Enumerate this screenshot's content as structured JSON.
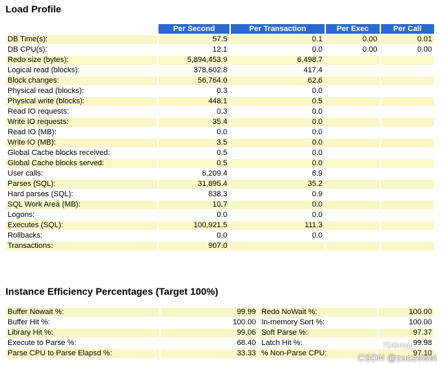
{
  "load_profile": {
    "title": "Load Profile",
    "headers": [
      "Per Second",
      "Per Transaction",
      "Per Exec",
      "Per Call"
    ],
    "rows": [
      {
        "label": "DB Time(s):",
        "ps": "57.5",
        "pt": "0.1",
        "pe": "0.00",
        "pc": "0.01"
      },
      {
        "label": "DB CPU(s):",
        "ps": "12.1",
        "pt": "0.0",
        "pe": "0.00",
        "pc": "0.00"
      },
      {
        "label": "Redo size (bytes):",
        "ps": "5,894,453.9",
        "pt": "6,498.7",
        "pe": "",
        "pc": ""
      },
      {
        "label": "Logical read (blocks):",
        "ps": "378,602.8",
        "pt": "417.4",
        "pe": "",
        "pc": ""
      },
      {
        "label": "Block changes:",
        "ps": "56,764.0",
        "pt": "62.6",
        "pe": "",
        "pc": ""
      },
      {
        "label": "Physical read (blocks):",
        "ps": "0.3",
        "pt": "0.0",
        "pe": "",
        "pc": ""
      },
      {
        "label": "Physical write (blocks):",
        "ps": "448.1",
        "pt": "0.5",
        "pe": "",
        "pc": ""
      },
      {
        "label": "Read IO requests:",
        "ps": "0.3",
        "pt": "0.0",
        "pe": "",
        "pc": ""
      },
      {
        "label": "Write IO requests:",
        "ps": "35.4",
        "pt": "0.0",
        "pe": "",
        "pc": ""
      },
      {
        "label": "Read IO (MB):",
        "ps": "0.0",
        "pt": "0.0",
        "pe": "",
        "pc": ""
      },
      {
        "label": "Write IO (MB):",
        "ps": "3.5",
        "pt": "0.0",
        "pe": "",
        "pc": ""
      },
      {
        "label": "Global Cache blocks received:",
        "ps": "0.5",
        "pt": "0.0",
        "pe": "",
        "pc": ""
      },
      {
        "label": "Global Cache blocks served:",
        "ps": "0.5",
        "pt": "0.0",
        "pe": "",
        "pc": ""
      },
      {
        "label": "User calls:",
        "ps": "6,209.4",
        "pt": "6.9",
        "pe": "",
        "pc": ""
      },
      {
        "label": "Parses (SQL):",
        "ps": "31,895.4",
        "pt": "35.2",
        "pe": "",
        "pc": ""
      },
      {
        "label": "Hard parses (SQL):",
        "ps": "838.3",
        "pt": "0.9",
        "pe": "",
        "pc": ""
      },
      {
        "label": "SQL Work Area (MB):",
        "ps": "10.7",
        "pt": "0.0",
        "pe": "",
        "pc": ""
      },
      {
        "label": "Logons:",
        "ps": "0.0",
        "pt": "0.0",
        "pe": "",
        "pc": ""
      },
      {
        "label": "Executes (SQL):",
        "ps": "100,921.5",
        "pt": "111.3",
        "pe": "",
        "pc": ""
      },
      {
        "label": "Rollbacks:",
        "ps": "0.0",
        "pt": "0.0",
        "pe": "",
        "pc": ""
      },
      {
        "label": "Transactions:",
        "ps": "907.0",
        "pt": "",
        "pe": "",
        "pc": ""
      }
    ]
  },
  "instance_efficiency": {
    "title": "Instance Efficiency Percentages (Target 100%)",
    "rows": [
      {
        "l1": "Buffer Nowait %:",
        "v1": "99.99",
        "l2": "Redo NoWait %:",
        "v2": "100.00"
      },
      {
        "l1": "Buffer Hit %:",
        "v1": "100.00",
        "l2": "In-memory Sort %:",
        "v2": "100.00"
      },
      {
        "l1": "Library Hit %:",
        "v1": "99.06",
        "l2": "Soft Parse %:",
        "v2": "97.37"
      },
      {
        "l1": "Execute to Parse %:",
        "v1": "68.40",
        "l2": "Latch Hit %:",
        "v2": "99.98"
      },
      {
        "l1": "Parse CPU to Parse Elapsd %:",
        "v1": "33.33",
        "l2": "% Non-Parse CPU:",
        "v2": "97.10"
      }
    ]
  },
  "watermark": {
    "line1": "7DGroup",
    "line2": "CSDN @zuozewei"
  },
  "colors": {
    "header_bg": "#2a6ad1",
    "odd_row_bg": "#fbf8c8"
  }
}
